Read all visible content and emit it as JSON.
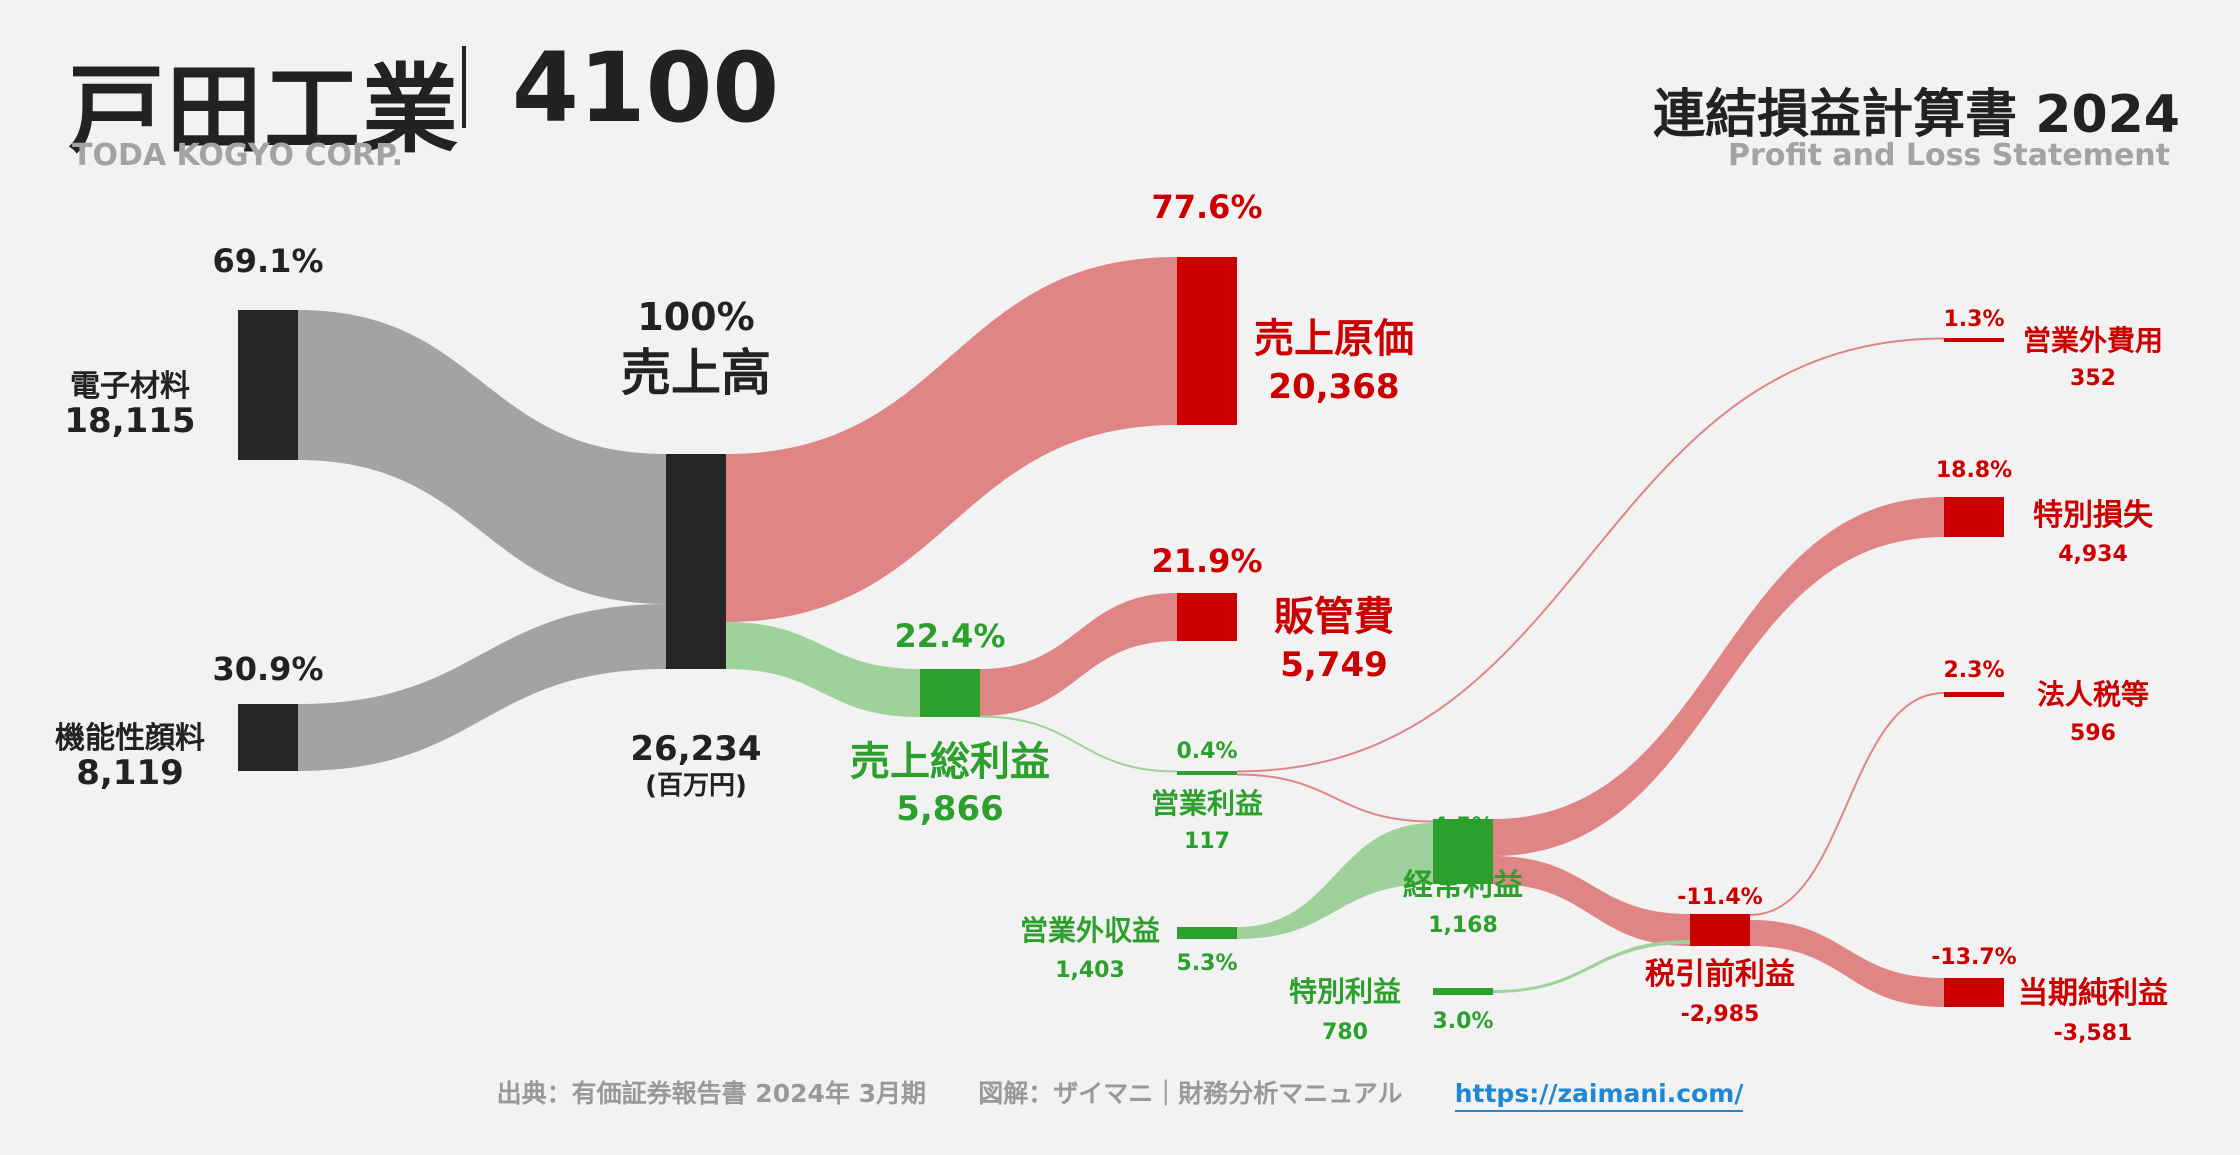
{
  "header": {
    "company_jp": "戸田工業",
    "code": "4100",
    "company_en": "TODA KOGYO CORP.",
    "statement_jp": "連結損益計算書 2024",
    "statement_en": "Profit and Loss Statement"
  },
  "footer": {
    "source": "出典：有価証券報告書 2024年 3月期",
    "credit": "図解：ザイマニ｜財務分析マニュアル",
    "url": "https://zaimani.com/"
  },
  "colors": {
    "black": "#262626",
    "gray_flow": "#a3a3a3",
    "red": "#cc0000",
    "red_flow": "#e08585",
    "green": "#2ca02c",
    "green_flow": "#9ed29a"
  },
  "chart_data": {
    "type": "sankey",
    "unit": "(百万円)",
    "nodes": [
      {
        "id": "denshi",
        "label": "電子材料",
        "value": "18,115",
        "pct": "69.1%",
        "color": "black"
      },
      {
        "id": "kinou",
        "label": "機能性顔料",
        "value": "8,119",
        "pct": "30.9%",
        "color": "black"
      },
      {
        "id": "sales",
        "label": "売上高",
        "value": "26,234",
        "pct": "100%",
        "color": "black"
      },
      {
        "id": "cogs",
        "label": "売上原価",
        "value": "20,368",
        "pct": "77.6%",
        "color": "red"
      },
      {
        "id": "gross",
        "label": "売上総利益",
        "value": "5,866",
        "pct": "22.4%",
        "color": "green"
      },
      {
        "id": "sga",
        "label": "販管費",
        "value": "5,749",
        "pct": "21.9%",
        "color": "red"
      },
      {
        "id": "opinc",
        "label": "営業利益",
        "value": "117",
        "pct": "0.4%",
        "color": "green"
      },
      {
        "id": "nonopinc",
        "label": "営業外収益",
        "value": "1,403",
        "pct": "5.3%",
        "color": "green"
      },
      {
        "id": "nonopexp",
        "label": "営業外費用",
        "value": "352",
        "pct": "1.3%",
        "color": "red"
      },
      {
        "id": "ordinary",
        "label": "経常利益",
        "value": "1,168",
        "pct": "4.5%",
        "color": "green"
      },
      {
        "id": "extgain",
        "label": "特別利益",
        "value": "780",
        "pct": "3.0%",
        "color": "green"
      },
      {
        "id": "extloss",
        "label": "特別損失",
        "value": "4,934",
        "pct": "18.8%",
        "color": "red"
      },
      {
        "id": "pretax",
        "label": "税引前利益",
        "value": "-2,985",
        "pct": "-11.4%",
        "color": "red"
      },
      {
        "id": "tax",
        "label": "法人税等",
        "value": "596",
        "pct": "2.3%",
        "color": "red"
      },
      {
        "id": "net",
        "label": "当期純利益",
        "value": "-3,581",
        "pct": "-13.7%",
        "color": "red"
      }
    ],
    "links": [
      {
        "source": "denshi",
        "target": "sales",
        "value": 18115
      },
      {
        "source": "kinou",
        "target": "sales",
        "value": 8119
      },
      {
        "source": "sales",
        "target": "cogs",
        "value": 20368
      },
      {
        "source": "sales",
        "target": "gross",
        "value": 5866
      },
      {
        "source": "gross",
        "target": "sga",
        "value": 5749
      },
      {
        "source": "gross",
        "target": "opinc",
        "value": 117
      },
      {
        "source": "opinc",
        "target": "nonopexp",
        "value": 117
      },
      {
        "source": "nonopinc",
        "target": "ordinary",
        "value": 1403
      },
      {
        "source": "ordinary",
        "target": "nonopexp",
        "value": 235
      },
      {
        "source": "ordinary",
        "target": "extloss",
        "value": 933
      },
      {
        "source": "pretax",
        "target": "extloss",
        "value": 4001
      },
      {
        "source": "extgain",
        "target": "pretax",
        "value": 780
      },
      {
        "source": "pretax",
        "target": "tax",
        "value": 596
      },
      {
        "source": "pretax",
        "target": "net",
        "value": 3581
      }
    ]
  }
}
